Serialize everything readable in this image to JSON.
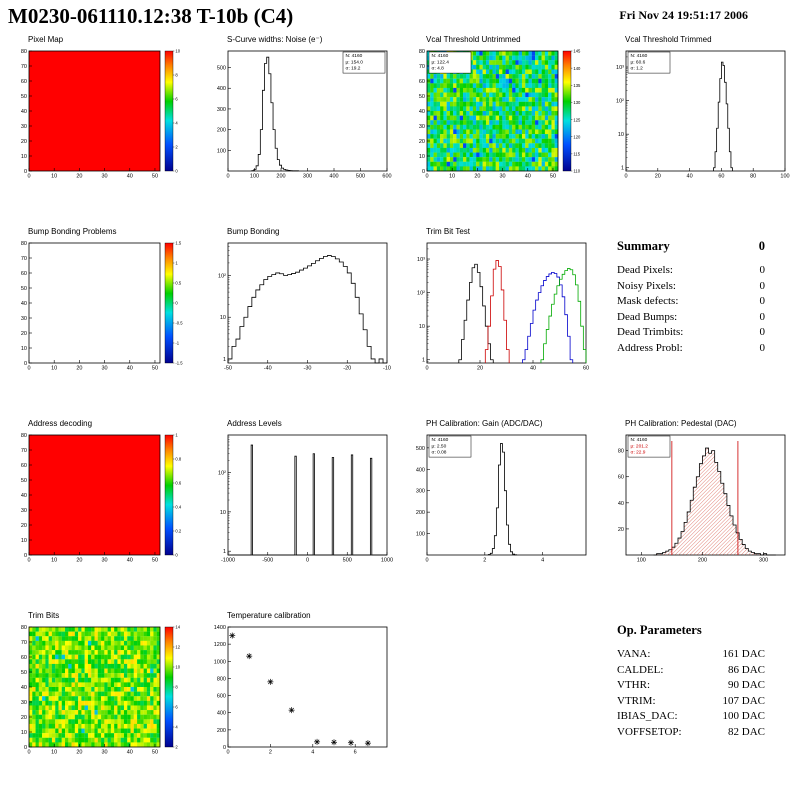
{
  "header": {
    "title": "M0230-061110.12:38 T-10b (C4)",
    "date": "Fri Nov 24 19:51:17 2006"
  },
  "summary": {
    "title": "Summary",
    "value": "0",
    "rows": [
      {
        "label": "Dead Pixels:",
        "value": "0"
      },
      {
        "label": "Noisy Pixels:",
        "value": "0"
      },
      {
        "label": "Mask defects:",
        "value": "0"
      },
      {
        "label": "Dead Bumps:",
        "value": "0"
      },
      {
        "label": "Dead Trimbits:",
        "value": "0"
      },
      {
        "label": "Address Probl:",
        "value": "0"
      }
    ]
  },
  "op_parameters": {
    "title": "Op. Parameters",
    "rows": [
      {
        "label": "VANA:",
        "value": "161 DAC"
      },
      {
        "label": "CALDEL:",
        "value": "86 DAC"
      },
      {
        "label": "VTHR:",
        "value": "90 DAC"
      },
      {
        "label": "VTRIM:",
        "value": "107 DAC"
      },
      {
        "label": "IBIAS_DAC:",
        "value": "100 DAC"
      },
      {
        "label": "VOFFSETOP:",
        "value": "82 DAC"
      }
    ]
  },
  "colors": {
    "accent_red": "#cc0000",
    "hist_line": "#000000",
    "map_red": "#ff0000"
  },
  "chart_data": [
    {
      "type": "heatmap",
      "title": "Pixel Map",
      "xlim": [
        0,
        52
      ],
      "ylim": [
        0,
        80
      ],
      "xticks": [
        0,
        10,
        20,
        30,
        40,
        50
      ],
      "yticks": [
        0,
        10,
        20,
        30,
        40,
        50,
        60,
        70,
        80
      ],
      "pattern": "uniform",
      "uniform_t": 1.0,
      "colorbar": {
        "ticks": [
          "10",
          "8",
          "6",
          "4",
          "2",
          "0"
        ]
      }
    },
    {
      "type": "hist",
      "title": "S-Curve widths: Noise (e⁻)",
      "xlim": [
        0,
        600
      ],
      "xticks": [
        0,
        100,
        200,
        300,
        400,
        500,
        600
      ],
      "ylim": [
        0,
        580
      ],
      "yticks": [
        100,
        200,
        300,
        400,
        500
      ],
      "bins": {
        "x0": 90,
        "dx": 8,
        "counts": [
          2,
          8,
          25,
          80,
          200,
          390,
          520,
          550,
          470,
          330,
          200,
          110,
          55,
          28,
          14,
          8,
          5,
          3,
          2,
          1,
          1,
          1
        ]
      },
      "stats": {
        "pos": "tr",
        "lines": [
          {
            "t": "N: 4160"
          },
          {
            "t": "μ: 154.0"
          },
          {
            "t": "σ: 19.2"
          }
        ]
      }
    },
    {
      "type": "heatmap",
      "title": "Vcal Threshold Untrimmed",
      "xlim": [
        0,
        52
      ],
      "ylim": [
        0,
        80
      ],
      "xticks": [
        0,
        10,
        20,
        30,
        40,
        50
      ],
      "yticks": [
        0,
        10,
        20,
        30,
        40,
        50,
        60,
        70,
        80
      ],
      "pattern": "noise",
      "t_range": [
        0.34,
        0.72
      ],
      "speckle": 0.02,
      "colorbar": {
        "ticks": [
          "145",
          "140",
          "135",
          "130",
          "125",
          "120",
          "115",
          "110"
        ]
      },
      "stats": {
        "pos": "tl",
        "lines": [
          {
            "t": "N: 4160"
          },
          {
            "t": "μ: 122.4"
          },
          {
            "t": "σ: 4.8"
          }
        ]
      }
    },
    {
      "type": "hist",
      "title": "Vcal Threshold Trimmed",
      "ylog": true,
      "xlim": [
        0,
        100
      ],
      "xticks": [
        0,
        20,
        40,
        60,
        80,
        100
      ],
      "ylimlog": [
        0.8,
        3000
      ],
      "ylogticks": [
        1,
        10,
        100,
        1000
      ],
      "bins": {
        "x0": 55,
        "dx": 1,
        "counts": [
          1,
          3,
          15,
          90,
          450,
          1400,
          1100,
          350,
          80,
          15,
          3,
          1
        ]
      },
      "stats": {
        "pos": "tl",
        "lines": [
          {
            "t": "N: 4160"
          },
          {
            "t": "μ: 60.6"
          },
          {
            "t": "σ: 1.2"
          }
        ]
      }
    },
    {
      "type": "heatmap",
      "title": "Bump Bonding Problems",
      "xlim": [
        0,
        52
      ],
      "ylim": [
        0,
        80
      ],
      "xticks": [
        0,
        10,
        20,
        30,
        40,
        50
      ],
      "yticks": [
        0,
        10,
        20,
        30,
        40,
        50,
        60,
        70,
        80
      ],
      "pattern": "empty",
      "colorbar": {
        "ticks": [
          "1.5",
          "1",
          "0.5",
          "0",
          "-0.5",
          "-1",
          "-1.5"
        ]
      }
    },
    {
      "type": "hist",
      "title": "Bump Bonding",
      "ylog": true,
      "xlim": [
        -50,
        -10
      ],
      "xticks": [
        -50,
        -40,
        -30,
        -20,
        -10
      ],
      "ylimlog": [
        0.8,
        600
      ],
      "ylogticks": [
        1,
        10,
        100
      ],
      "bins": {
        "x0": -50,
        "dx": 1,
        "counts": [
          1,
          2,
          3,
          6,
          10,
          18,
          30,
          45,
          60,
          80,
          95,
          105,
          115,
          110,
          100,
          105,
          112,
          120,
          135,
          150,
          170,
          195,
          225,
          255,
          285,
          300,
          285,
          250,
          210,
          165,
          115,
          65,
          30,
          12,
          5,
          2,
          1,
          0,
          1,
          0
        ]
      }
    },
    {
      "type": "multihist",
      "title": "Trim Bit Test",
      "ylog": true,
      "xlim": [
        0,
        60
      ],
      "xticks": [
        0,
        20,
        40,
        60
      ],
      "ylimlog": [
        0.8,
        3000
      ],
      "ylogticks": [
        1,
        10,
        100,
        1000
      ],
      "series": [
        {
          "name": "trim-bit-0",
          "color": "#000000",
          "bins": {
            "x0": 12,
            "dx": 1,
            "counts": [
              1,
              4,
              15,
              60,
              200,
              550,
              700,
              400,
              150,
              40,
              10,
              3,
              1
            ]
          }
        },
        {
          "name": "trim-bit-1",
          "color": "#cc0000",
          "bins": {
            "x0": 22,
            "dx": 1,
            "counts": [
              2,
              10,
              80,
              500,
              900,
              600,
              120,
              15,
              2
            ]
          }
        },
        {
          "name": "trim-bit-2",
          "color": "#0000cc",
          "bins": {
            "x0": 36,
            "dx": 1,
            "counts": [
              1,
              2,
              5,
              12,
              30,
              60,
              100,
              160,
              230,
              300,
              360,
              400,
              370,
              290,
              170,
              75,
              22,
              5,
              1
            ]
          }
        },
        {
          "name": "trim-bit-3",
          "color": "#00aa00",
          "bins": {
            "x0": 43,
            "dx": 1,
            "counts": [
              1,
              3,
              8,
              20,
              45,
              90,
              160,
              250,
              350,
              450,
              520,
              480,
              340,
              170,
              55,
              10,
              2
            ]
          }
        }
      ]
    },
    {
      "type": "heatmap",
      "title": "Address decoding",
      "xlim": [
        0,
        52
      ],
      "ylim": [
        0,
        80
      ],
      "xticks": [
        0,
        10,
        20,
        30,
        40,
        50
      ],
      "yticks": [
        0,
        10,
        20,
        30,
        40,
        50,
        60,
        70,
        80
      ],
      "pattern": "uniform",
      "uniform_t": 1.0,
      "colorbar": {
        "ticks": [
          "1",
          "0.8",
          "0.6",
          "0.4",
          "0.2",
          "0"
        ]
      }
    },
    {
      "type": "spikehist",
      "title": "Address Levels",
      "ylog": true,
      "xlim": [
        -1000,
        1000
      ],
      "xticks": [
        -1000,
        -500,
        0,
        500,
        1000
      ],
      "ylimlog": [
        0.8,
        900
      ],
      "ylogticks": [
        1,
        10,
        100
      ],
      "spikes": {
        "centers": [
          -700,
          -150,
          80,
          320,
          560,
          800
        ],
        "heights": [
          500,
          260,
          300,
          240,
          280,
          230
        ],
        "width": 18
      }
    },
    {
      "type": "hist",
      "title": "PH Calibration: Gain (ADC/DAC)",
      "xlim": [
        0,
        5.5
      ],
      "xticks": [
        0,
        2,
        4
      ],
      "ylim": [
        0,
        560
      ],
      "yticks": [
        100,
        200,
        300,
        400,
        500
      ],
      "bins": {
        "x0": 2.12,
        "dx": 0.07,
        "counts": [
          2,
          8,
          30,
          90,
          220,
          420,
          520,
          480,
          300,
          140,
          50,
          15,
          4,
          1
        ]
      },
      "stats": {
        "pos": "tl",
        "lines": [
          {
            "t": "N: 4160"
          },
          {
            "t": "μ: 2.50"
          },
          {
            "t": "σ: 0.08"
          }
        ]
      }
    },
    {
      "type": "hist",
      "title": "PH Calibration: Pedestal (DAC)",
      "xlim": [
        75,
        335
      ],
      "xticks": [
        100,
        200,
        300
      ],
      "ylim": [
        0,
        92
      ],
      "yticks": [
        20,
        40,
        60,
        80
      ],
      "fill": "hatch-red",
      "bins": {
        "x0": 120,
        "dx": 5,
        "counts": [
          0,
          1,
          1,
          2,
          3,
          4,
          6,
          9,
          13,
          18,
          25,
          33,
          42,
          52,
          60,
          70,
          76,
          82,
          78,
          80,
          71,
          64,
          55,
          47,
          38,
          30,
          23,
          17,
          12,
          8,
          5,
          3,
          2,
          1,
          1,
          0,
          1,
          0,
          0,
          0
        ]
      },
      "vlines": [
        {
          "x": 150,
          "color": "#cc0000"
        },
        {
          "x": 258,
          "color": "#cc0000"
        }
      ],
      "stats": {
        "pos": "tl",
        "lines": [
          {
            "t": "N: 4160",
            "color": "#000000"
          },
          {
            "t": "μ: 201.2",
            "color": "#cc0000"
          },
          {
            "t": "σ: 22.9",
            "color": "#cc0000"
          }
        ]
      }
    },
    {
      "type": "heatmap",
      "title": "Trim Bits",
      "xlim": [
        0,
        52
      ],
      "ylim": [
        0,
        80
      ],
      "xticks": [
        0,
        10,
        20,
        30,
        40,
        50
      ],
      "yticks": [
        0,
        10,
        20,
        30,
        40,
        50,
        60,
        70,
        80
      ],
      "pattern": "noise",
      "t_range": [
        0.52,
        0.78
      ],
      "speckle": 0.01,
      "colorbar": {
        "ticks": [
          "14",
          "12",
          "10",
          "8",
          "6",
          "4",
          "2"
        ]
      }
    },
    {
      "type": "scatter",
      "title": "Temperature calibration",
      "xlim": [
        0,
        7.5
      ],
      "xticks": [
        0,
        2,
        4,
        6
      ],
      "ylim": [
        0,
        1400
      ],
      "yticks": [
        0,
        200,
        400,
        600,
        800,
        1000,
        1200,
        1400
      ],
      "marker": "star",
      "points": [
        [
          0.2,
          1300
        ],
        [
          1.0,
          1060
        ],
        [
          2.0,
          760
        ],
        [
          3.0,
          430
        ],
        [
          4.2,
          60
        ],
        [
          5.0,
          55
        ],
        [
          5.8,
          50
        ],
        [
          6.6,
          45
        ]
      ]
    }
  ]
}
